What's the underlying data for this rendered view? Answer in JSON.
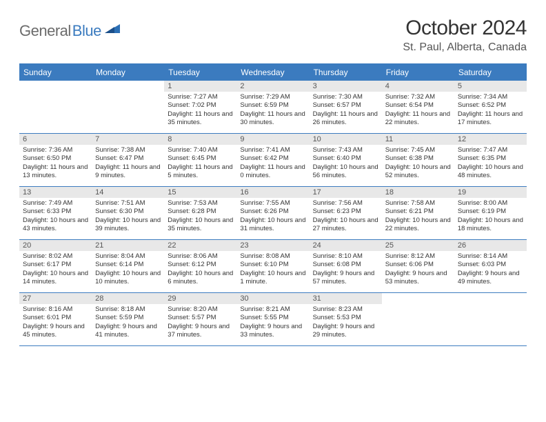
{
  "logo": {
    "text1": "General",
    "text2": "Blue"
  },
  "header": {
    "title": "October 2024",
    "location": "St. Paul, Alberta, Canada"
  },
  "colors": {
    "brand_blue": "#3b7bbf",
    "brand_gray": "#6b6b6b",
    "header_bg": "#3b7bbf",
    "daynum_bg": "#e8e8e8",
    "text": "#333333",
    "bg": "#ffffff"
  },
  "dayNames": [
    "Sunday",
    "Monday",
    "Tuesday",
    "Wednesday",
    "Thursday",
    "Friday",
    "Saturday"
  ],
  "weeks": [
    [
      {
        "day": "",
        "sunrise": "",
        "sunset": "",
        "daylight": ""
      },
      {
        "day": "",
        "sunrise": "",
        "sunset": "",
        "daylight": ""
      },
      {
        "day": "1",
        "sunrise": "Sunrise: 7:27 AM",
        "sunset": "Sunset: 7:02 PM",
        "daylight": "Daylight: 11 hours and 35 minutes."
      },
      {
        "day": "2",
        "sunrise": "Sunrise: 7:29 AM",
        "sunset": "Sunset: 6:59 PM",
        "daylight": "Daylight: 11 hours and 30 minutes."
      },
      {
        "day": "3",
        "sunrise": "Sunrise: 7:30 AM",
        "sunset": "Sunset: 6:57 PM",
        "daylight": "Daylight: 11 hours and 26 minutes."
      },
      {
        "day": "4",
        "sunrise": "Sunrise: 7:32 AM",
        "sunset": "Sunset: 6:54 PM",
        "daylight": "Daylight: 11 hours and 22 minutes."
      },
      {
        "day": "5",
        "sunrise": "Sunrise: 7:34 AM",
        "sunset": "Sunset: 6:52 PM",
        "daylight": "Daylight: 11 hours and 17 minutes."
      }
    ],
    [
      {
        "day": "6",
        "sunrise": "Sunrise: 7:36 AM",
        "sunset": "Sunset: 6:50 PM",
        "daylight": "Daylight: 11 hours and 13 minutes."
      },
      {
        "day": "7",
        "sunrise": "Sunrise: 7:38 AM",
        "sunset": "Sunset: 6:47 PM",
        "daylight": "Daylight: 11 hours and 9 minutes."
      },
      {
        "day": "8",
        "sunrise": "Sunrise: 7:40 AM",
        "sunset": "Sunset: 6:45 PM",
        "daylight": "Daylight: 11 hours and 5 minutes."
      },
      {
        "day": "9",
        "sunrise": "Sunrise: 7:41 AM",
        "sunset": "Sunset: 6:42 PM",
        "daylight": "Daylight: 11 hours and 0 minutes."
      },
      {
        "day": "10",
        "sunrise": "Sunrise: 7:43 AM",
        "sunset": "Sunset: 6:40 PM",
        "daylight": "Daylight: 10 hours and 56 minutes."
      },
      {
        "day": "11",
        "sunrise": "Sunrise: 7:45 AM",
        "sunset": "Sunset: 6:38 PM",
        "daylight": "Daylight: 10 hours and 52 minutes."
      },
      {
        "day": "12",
        "sunrise": "Sunrise: 7:47 AM",
        "sunset": "Sunset: 6:35 PM",
        "daylight": "Daylight: 10 hours and 48 minutes."
      }
    ],
    [
      {
        "day": "13",
        "sunrise": "Sunrise: 7:49 AM",
        "sunset": "Sunset: 6:33 PM",
        "daylight": "Daylight: 10 hours and 43 minutes."
      },
      {
        "day": "14",
        "sunrise": "Sunrise: 7:51 AM",
        "sunset": "Sunset: 6:30 PM",
        "daylight": "Daylight: 10 hours and 39 minutes."
      },
      {
        "day": "15",
        "sunrise": "Sunrise: 7:53 AM",
        "sunset": "Sunset: 6:28 PM",
        "daylight": "Daylight: 10 hours and 35 minutes."
      },
      {
        "day": "16",
        "sunrise": "Sunrise: 7:55 AM",
        "sunset": "Sunset: 6:26 PM",
        "daylight": "Daylight: 10 hours and 31 minutes."
      },
      {
        "day": "17",
        "sunrise": "Sunrise: 7:56 AM",
        "sunset": "Sunset: 6:23 PM",
        "daylight": "Daylight: 10 hours and 27 minutes."
      },
      {
        "day": "18",
        "sunrise": "Sunrise: 7:58 AM",
        "sunset": "Sunset: 6:21 PM",
        "daylight": "Daylight: 10 hours and 22 minutes."
      },
      {
        "day": "19",
        "sunrise": "Sunrise: 8:00 AM",
        "sunset": "Sunset: 6:19 PM",
        "daylight": "Daylight: 10 hours and 18 minutes."
      }
    ],
    [
      {
        "day": "20",
        "sunrise": "Sunrise: 8:02 AM",
        "sunset": "Sunset: 6:17 PM",
        "daylight": "Daylight: 10 hours and 14 minutes."
      },
      {
        "day": "21",
        "sunrise": "Sunrise: 8:04 AM",
        "sunset": "Sunset: 6:14 PM",
        "daylight": "Daylight: 10 hours and 10 minutes."
      },
      {
        "day": "22",
        "sunrise": "Sunrise: 8:06 AM",
        "sunset": "Sunset: 6:12 PM",
        "daylight": "Daylight: 10 hours and 6 minutes."
      },
      {
        "day": "23",
        "sunrise": "Sunrise: 8:08 AM",
        "sunset": "Sunset: 6:10 PM",
        "daylight": "Daylight: 10 hours and 1 minute."
      },
      {
        "day": "24",
        "sunrise": "Sunrise: 8:10 AM",
        "sunset": "Sunset: 6:08 PM",
        "daylight": "Daylight: 9 hours and 57 minutes."
      },
      {
        "day": "25",
        "sunrise": "Sunrise: 8:12 AM",
        "sunset": "Sunset: 6:06 PM",
        "daylight": "Daylight: 9 hours and 53 minutes."
      },
      {
        "day": "26",
        "sunrise": "Sunrise: 8:14 AM",
        "sunset": "Sunset: 6:03 PM",
        "daylight": "Daylight: 9 hours and 49 minutes."
      }
    ],
    [
      {
        "day": "27",
        "sunrise": "Sunrise: 8:16 AM",
        "sunset": "Sunset: 6:01 PM",
        "daylight": "Daylight: 9 hours and 45 minutes."
      },
      {
        "day": "28",
        "sunrise": "Sunrise: 8:18 AM",
        "sunset": "Sunset: 5:59 PM",
        "daylight": "Daylight: 9 hours and 41 minutes."
      },
      {
        "day": "29",
        "sunrise": "Sunrise: 8:20 AM",
        "sunset": "Sunset: 5:57 PM",
        "daylight": "Daylight: 9 hours and 37 minutes."
      },
      {
        "day": "30",
        "sunrise": "Sunrise: 8:21 AM",
        "sunset": "Sunset: 5:55 PM",
        "daylight": "Daylight: 9 hours and 33 minutes."
      },
      {
        "day": "31",
        "sunrise": "Sunrise: 8:23 AM",
        "sunset": "Sunset: 5:53 PM",
        "daylight": "Daylight: 9 hours and 29 minutes."
      },
      {
        "day": "",
        "sunrise": "",
        "sunset": "",
        "daylight": ""
      },
      {
        "day": "",
        "sunrise": "",
        "sunset": "",
        "daylight": ""
      }
    ]
  ]
}
